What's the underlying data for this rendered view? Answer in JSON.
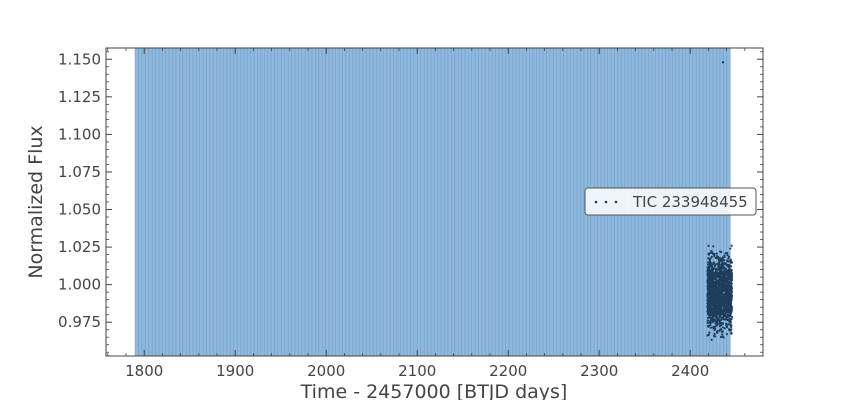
{
  "chart_data": {
    "type": "scatter",
    "title": "",
    "xlabel": "Time - 2457000 [BTJD days]",
    "ylabel": "Normalized Flux",
    "xlim": [
      1758,
      2480
    ],
    "ylim": [
      0.9525,
      1.1575
    ],
    "xticks": [
      1800,
      1900,
      2000,
      2100,
      2200,
      2300,
      2400
    ],
    "yticks": [
      0.975,
      1.0,
      1.025,
      1.05,
      1.075,
      1.1,
      1.125,
      1.15
    ],
    "ytick_labels": [
      "0.975",
      "1.000",
      "1.025",
      "1.050",
      "1.075",
      "1.100",
      "1.125",
      "1.150"
    ],
    "grid": false,
    "legend_position": "center-right",
    "series": [
      {
        "name": "TIC 233948455",
        "color": "#1f3d5c",
        "marker": "dot",
        "data_range_x": [
          2419,
          2446
        ],
        "flux_range": [
          0.96,
          1.03
        ],
        "outlier": {
          "x": 2436,
          "y": 1.148
        }
      }
    ],
    "shaded_region": {
      "x_start": 1790,
      "x_end": 2444,
      "color": "#8fb8dc",
      "stripe_color": "#6fa0cc"
    }
  }
}
